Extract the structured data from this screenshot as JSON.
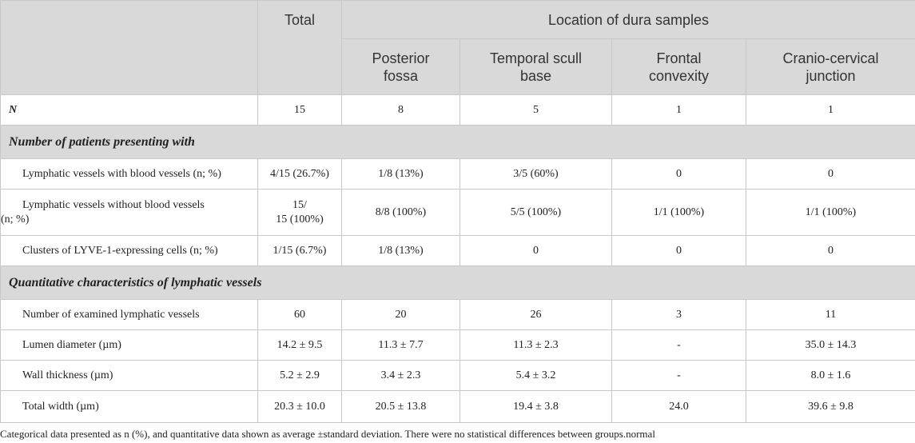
{
  "header": {
    "total": "Total",
    "location_group": "Location of dura samples",
    "locations": [
      [
        "Posterior",
        "fossa"
      ],
      [
        "Temporal scull",
        "base"
      ],
      [
        "Frontal",
        "convexity"
      ],
      [
        "Cranio-cervical",
        "junction"
      ]
    ]
  },
  "n_row": {
    "label": "N",
    "values": [
      "15",
      "8",
      "5",
      "1",
      "1"
    ]
  },
  "sections": [
    {
      "title": "Number of patients presenting with",
      "rows": [
        {
          "label": "Lymphatic vessels with blood vessels (n; %)",
          "values": [
            "4/15 (26.7%)",
            "1/8 (13%)",
            "3/5 (60%)",
            "0",
            "0"
          ]
        },
        {
          "label_lines": [
            "Lymphatic vessels without blood vessels",
            "(n; %)"
          ],
          "total_lines": [
            "15/",
            "15 (100%)"
          ],
          "values": [
            "8/8 (100%)",
            "5/5 (100%)",
            "1/1 (100%)",
            "1/1 (100%)"
          ]
        },
        {
          "label": "Clusters of LYVE-1-expressing cells (n; %)",
          "values": [
            "1/15 (6.7%)",
            "1/8 (13%)",
            "0",
            "0",
            "0"
          ]
        }
      ]
    },
    {
      "title": "Quantitative characteristics of lymphatic vessels",
      "rows": [
        {
          "label": "Number of examined lymphatic vessels",
          "values": [
            "60",
            "20",
            "26",
            "3",
            "11"
          ]
        },
        {
          "label": "Lumen diameter (µm)",
          "values": [
            "14.2 ± 9.5",
            "11.3 ± 7.7",
            "11.3 ± 2.3",
            "-",
            "35.0 ± 14.3"
          ]
        },
        {
          "label": "Wall thickness (µm)",
          "values": [
            "5.2 ± 2.9",
            "3.4 ± 2.3",
            "5.4 ± 3.2",
            "-",
            "8.0 ± 1.6"
          ]
        },
        {
          "label": "Total width (µm)",
          "values": [
            "20.3 ± 10.0",
            "20.5 ± 13.8",
            "19.4 ± 3.8",
            "24.0",
            "39.6 ± 9.8"
          ]
        }
      ]
    }
  ],
  "footnote": "Categorical data presented as n (%), and quantitative data shown as average ±standard deviation. There were no statistical differences between groups.normal"
}
